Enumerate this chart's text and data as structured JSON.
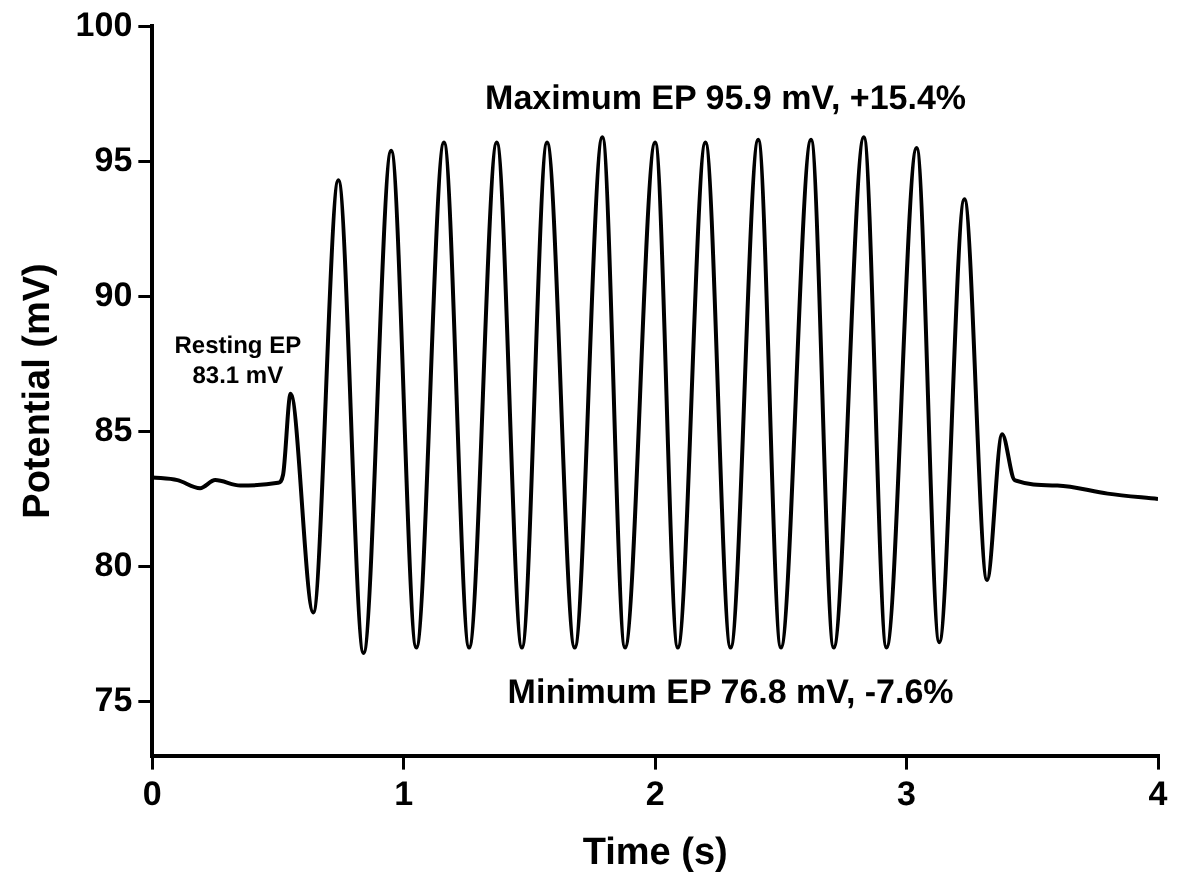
{
  "chart_data": {
    "type": "line",
    "xlabel": "Time (s)",
    "ylabel": "Potential (mV)",
    "xlim": [
      0,
      4
    ],
    "xticks": [
      0,
      1,
      2,
      3,
      4
    ],
    "ylim": [
      73,
      100
    ],
    "yticks": [
      75,
      80,
      85,
      90,
      95,
      100
    ],
    "grid": false,
    "legend": false,
    "marker": "none",
    "line_style": "solid",
    "series": [
      {
        "color": "#000000",
        "x": [
          0,
          0.1,
          0.19,
          0.25,
          0.35,
          0.5,
          0.52,
          0.55,
          0.64,
          0.74,
          0.84,
          0.95,
          1.05,
          1.16,
          1.26,
          1.37,
          1.47,
          1.57,
          1.68,
          1.79,
          1.88,
          2.0,
          2.09,
          2.2,
          2.3,
          2.41,
          2.5,
          2.62,
          2.71,
          2.83,
          2.92,
          3.04,
          3.13,
          3.23,
          3.32,
          3.38,
          3.43,
          3.6,
          3.8,
          4.0
        ],
        "values": [
          83.3,
          83.2,
          82.9,
          83.2,
          83.0,
          83.1,
          83.4,
          86.4,
          78.3,
          94.3,
          76.8,
          95.4,
          77.0,
          95.7,
          77.0,
          95.7,
          77.0,
          95.7,
          77.0,
          95.9,
          77.0,
          95.7,
          77.0,
          95.7,
          77.0,
          95.8,
          77.0,
          95.8,
          77.0,
          95.9,
          77.0,
          95.5,
          77.2,
          93.6,
          79.5,
          84.9,
          83.2,
          83.0,
          82.7,
          82.5
        ]
      }
    ],
    "annotations": [
      "Resting EP\n83.1 mV",
      "Maximum EP 95.9 mV, +15.4%",
      "Minimum EP 76.8 mV, -7.6%"
    ]
  }
}
